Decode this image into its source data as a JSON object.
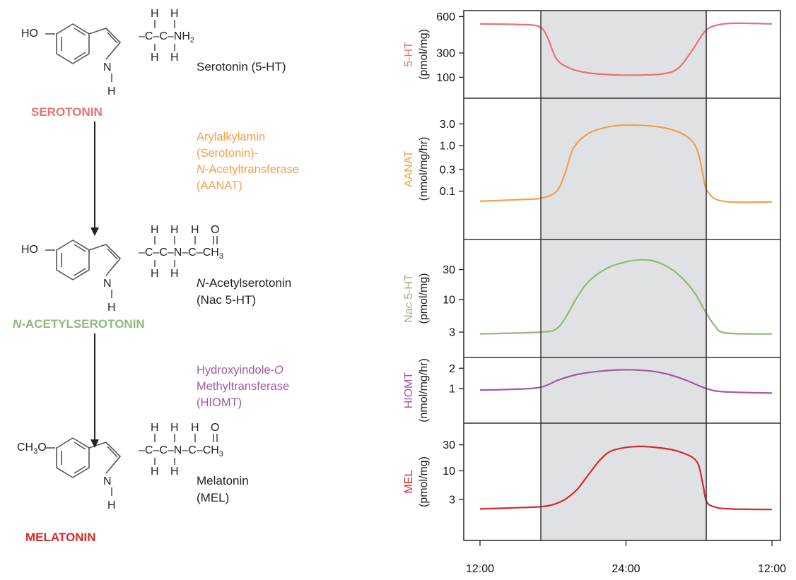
{
  "colors": {
    "serotonin": "#e57373",
    "aanat": "#f0a04b",
    "acetyl": "#8fb87a",
    "hiomt": "#a25a9e",
    "melatonin": "#d42a2a",
    "night_shade": "#dfe1e4"
  },
  "pathway": {
    "molecules": [
      {
        "key": "serotonin",
        "substituent": "HO",
        "side_chain": "–C–C–NH",
        "side_chain_sub": "2",
        "h_top": [
          "H",
          "H"
        ],
        "h_bottom": [
          "H",
          "H"
        ],
        "ring_n": "N",
        "ring_h": "H",
        "name": "Serotonin (5-HT)",
        "name_line2": "",
        "caps": "SEROTONIN",
        "caps_prefix": ""
      },
      {
        "key": "acetyl",
        "substituent": "HO",
        "side_chain": "–C–C–N–C–CH",
        "side_chain_sub": "3",
        "h_top": [
          "H",
          "H",
          "H",
          "O"
        ],
        "h_bottom": [
          "H",
          "H"
        ],
        "ring_n": "N",
        "ring_h": "H",
        "name_italic": "N",
        "name": "-Acetylserotonin",
        "name_line2": "(Nac 5-HT)",
        "caps": "-ACETYLSEROTONIN",
        "caps_prefix": "N"
      },
      {
        "key": "melatonin",
        "substituent": "CH",
        "substituent_sub": "3",
        "substituent_tail": "O",
        "side_chain": "–C–C–N–C–CH",
        "side_chain_sub": "3",
        "h_top": [
          "H",
          "H",
          "H",
          "O"
        ],
        "h_bottom": [
          "H",
          "H"
        ],
        "ring_n": "N",
        "ring_h": "H",
        "name": "Melatonin",
        "name_line2": "(MEL)",
        "caps": "MELATONIN",
        "caps_prefix": ""
      }
    ],
    "enzymes": [
      {
        "key": "aanat",
        "lines": [
          "Arylalkylamin",
          "(Serotonin)-",
          "-Acetyltransferase",
          "(AANAT)"
        ],
        "italic_prefix_line": 2,
        "italic_prefix": "N"
      },
      {
        "key": "hiomt",
        "lines": [
          "Hydroxyindole-",
          "Methyltransferase",
          "(HIOMT)"
        ],
        "italic_suffix_line": 0,
        "italic_suffix": "O"
      }
    ]
  },
  "chart_data": {
    "type": "line",
    "x_ticks": [
      "12:00",
      "24:00",
      "12:00"
    ],
    "x_range_hours": [
      12,
      36
    ],
    "night_band_hours": [
      17,
      30.6
    ],
    "panels": [
      {
        "key": "serotonin",
        "ylabel": "5-HT",
        "unit": "(pmol/mg)",
        "scale": "linear",
        "ylim": [
          50,
          620
        ],
        "yticks": [
          100,
          300,
          600
        ],
        "ytick_labels": [
          "100",
          "300",
          "600"
        ],
        "x": [
          12,
          15,
          16.8,
          17.5,
          18.3,
          19.5,
          21,
          23,
          25,
          27,
          28.3,
          29.5,
          30.5,
          31.5,
          33,
          36
        ],
        "y": [
          540,
          535,
          520,
          440,
          250,
          170,
          135,
          120,
          118,
          128,
          175,
          330,
          480,
          530,
          545,
          540
        ]
      },
      {
        "key": "aanat",
        "ylabel": "AANAT",
        "unit": "(nmol/mg/hr)",
        "scale": "log",
        "ylim": [
          0.035,
          4.5
        ],
        "yticks": [
          0.1,
          0.3,
          1.0,
          3.0
        ],
        "ytick_labels": [
          "0.1",
          "0.3",
          "1.0",
          "3.0"
        ],
        "x": [
          12,
          15,
          17,
          18.3,
          19,
          19.7,
          21,
          23,
          25,
          27,
          28.5,
          29.5,
          30,
          30.3,
          30.7,
          32,
          36
        ],
        "y": [
          0.06,
          0.065,
          0.07,
          0.1,
          0.25,
          0.9,
          1.9,
          2.7,
          2.8,
          2.5,
          1.9,
          1.2,
          0.6,
          0.25,
          0.1,
          0.06,
          0.058
        ]
      },
      {
        "key": "acetyl",
        "ylabel": "Nac 5-HT",
        "unit": "(pmol/mg)",
        "scale": "log",
        "ylim": [
          2.2,
          60
        ],
        "yticks": [
          3,
          10,
          30
        ],
        "ytick_labels": [
          "3",
          "10",
          "30"
        ],
        "x": [
          12,
          15,
          17,
          18.2,
          19,
          20,
          21,
          22.5,
          24,
          25.2,
          26.5,
          28,
          29.5,
          30.5,
          31.3,
          32.2,
          36
        ],
        "y": [
          2.8,
          2.9,
          3.0,
          3.3,
          5,
          11,
          20,
          32,
          40,
          43,
          40,
          28,
          14,
          6.5,
          3.8,
          2.9,
          2.8
        ]
      },
      {
        "key": "hiomt",
        "ylabel": "HIOMT",
        "unit": "(nmol/mg/hr)",
        "scale": "log",
        "ylim": [
          0.65,
          2.5
        ],
        "yticks": [
          1,
          2
        ],
        "ytick_labels": [
          "1",
          "2"
        ],
        "x": [
          12,
          15,
          17,
          18.5,
          20,
          22,
          24,
          26,
          27.5,
          29,
          30.5,
          32,
          36
        ],
        "y": [
          0.95,
          0.98,
          1.05,
          1.35,
          1.62,
          1.82,
          1.9,
          1.82,
          1.62,
          1.32,
          1.02,
          0.9,
          0.86
        ]
      },
      {
        "key": "melatonin",
        "ylabel": "MEL",
        "unit": "(pmol/mg)",
        "scale": "log",
        "ylim": [
          1.5,
          40
        ],
        "yticks": [
          3,
          10,
          30
        ],
        "ytick_labels": [
          "3",
          "10",
          "30"
        ],
        "x": [
          12,
          15,
          17,
          18,
          19,
          20,
          21,
          22,
          23,
          25,
          27,
          28.5,
          29.8,
          30.3,
          30.6,
          31.2,
          32.5,
          36
        ],
        "y": [
          2.0,
          2.1,
          2.2,
          2.4,
          3.0,
          4.6,
          9,
          17,
          24,
          28,
          26,
          22,
          15,
          6,
          2.8,
          2.2,
          2.0,
          1.95
        ]
      }
    ]
  }
}
